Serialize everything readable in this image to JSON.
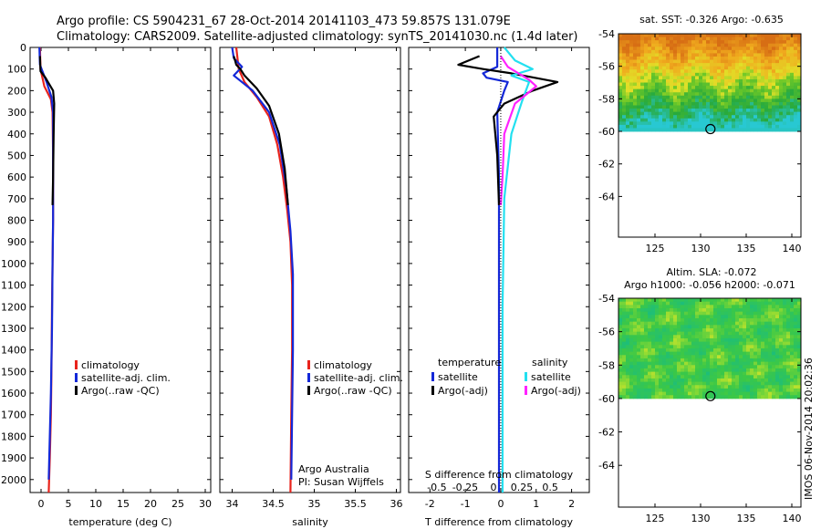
{
  "header": {
    "line1": "Argo profile: CS 5904231_67 28-Oct-2014 20141103_473 59.857S 131.079E",
    "line2": "Climatology: CARS2009. Satellite-adjusted climatology: synTS_20141030.nc (1.4d later)"
  },
  "colors": {
    "climatology": "#e8231c",
    "satellite": "#1428d8",
    "argo": "#000000",
    "sat_salinity": "#22e0f0",
    "argo_salinity": "#ff22ff"
  },
  "chart_data": [
    {
      "type": "line",
      "name": "temperature-panel",
      "xlabel": "temperature (deg C)",
      "xticks": [
        0,
        5,
        10,
        15,
        20,
        25,
        30
      ],
      "xlim": [
        -2,
        31
      ],
      "ylim": [
        2060,
        0
      ],
      "yticks": [
        0,
        100,
        200,
        300,
        400,
        500,
        600,
        700,
        800,
        900,
        1000,
        1100,
        1200,
        1300,
        1400,
        1500,
        1600,
        1700,
        1800,
        1900,
        2000
      ],
      "legend": [
        "climatology",
        "satellite-adj. clim.",
        "Argo(..raw -QC)"
      ],
      "series": [
        {
          "name": "climatology",
          "color": "#e8231c",
          "x": [
            -0.2,
            -0.1,
            0.6,
            1.8,
            2.1,
            2.2,
            2.2,
            2.1,
            2.0,
            1.9,
            1.8,
            1.6,
            1.4
          ],
          "y": [
            0,
            100,
            180,
            240,
            300,
            500,
            800,
            1000,
            1200,
            1500,
            1700,
            1900,
            2060
          ]
        },
        {
          "name": "satellite-adj. clim.",
          "color": "#1428d8",
          "x": [
            -0.3,
            -0.2,
            1.0,
            1.9,
            2.2,
            2.2,
            2.2,
            2.1,
            2.0,
            1.8,
            1.6,
            1.4
          ],
          "y": [
            0,
            80,
            160,
            230,
            300,
            500,
            800,
            1000,
            1300,
            1600,
            1800,
            2000
          ]
        },
        {
          "name": "Argo(..raw -QC)",
          "color": "#000000",
          "x": [
            -0.2,
            -0.1,
            0.8,
            1.5,
            2.2,
            2.4,
            2.3,
            2.2,
            2.1
          ],
          "y": [
            40,
            110,
            140,
            170,
            200,
            260,
            400,
            600,
            730
          ]
        }
      ]
    },
    {
      "type": "line",
      "name": "salinity-panel",
      "xlabel": "salinity",
      "xticks": [
        34,
        34.5,
        35,
        35.5,
        36
      ],
      "xtick_labels": [
        "34",
        "34.5",
        "35",
        "35.5",
        "36"
      ],
      "xlim": [
        33.85,
        36.05
      ],
      "ylim": [
        2060,
        0
      ],
      "legend": [
        "climatology",
        "satellite-adj. clim.",
        "Argo(..raw -QC)"
      ],
      "annotation": [
        "Argo Australia",
        "PI: Susan Wijffels"
      ],
      "series": [
        {
          "name": "climatology",
          "color": "#e8231c",
          "x": [
            34.05,
            34.08,
            34.15,
            34.3,
            34.45,
            34.55,
            34.62,
            34.67,
            34.71,
            34.73,
            34.73,
            34.72,
            34.71
          ],
          "y": [
            0,
            100,
            160,
            230,
            320,
            450,
            600,
            750,
            900,
            1100,
            1400,
            1700,
            2060
          ]
        },
        {
          "name": "satellite-adj. clim.",
          "color": "#1428d8",
          "x": [
            34.0,
            34.02,
            34.12,
            34.02,
            34.25,
            34.45,
            34.58,
            34.66,
            34.71,
            34.74,
            34.74,
            34.73,
            34.72
          ],
          "y": [
            0,
            50,
            90,
            130,
            200,
            300,
            450,
            650,
            850,
            1050,
            1400,
            1700,
            2000
          ]
        },
        {
          "name": "Argo(..raw -QC)",
          "color": "#000000",
          "x": [
            34.02,
            34.05,
            34.1,
            34.15,
            34.3,
            34.45,
            34.57,
            34.64,
            34.68
          ],
          "y": [
            40,
            80,
            100,
            130,
            190,
            270,
            400,
            560,
            730
          ]
        }
      ]
    },
    {
      "type": "line",
      "name": "difference-panel",
      "xlabel": "T difference from climatology",
      "xlabel2": "S difference from climatology",
      "xticks": [
        -2,
        -1,
        0,
        1,
        2
      ],
      "xticks2": [
        -0.5,
        -0.25,
        0,
        0.25,
        0.5
      ],
      "xtick2_labels": [
        "-0.5",
        "-0.25",
        "0",
        "0.25",
        "0.5"
      ],
      "xlim": [
        -2.6,
        2.5
      ],
      "ylim": [
        2060,
        0
      ],
      "legend_titles": [
        "temperature",
        "salinity"
      ],
      "legend": [
        "satellite",
        "Argo(-adj)",
        "satellite",
        "Argo(-adj)"
      ],
      "series": [
        {
          "name": "temperature satellite",
          "color": "#1428d8",
          "x": [
            -0.1,
            -0.1,
            -0.5,
            -0.4,
            0.2,
            0.1,
            -0.1,
            -0.05,
            -0.05,
            -0.05
          ],
          "y": [
            0,
            90,
            120,
            140,
            160,
            200,
            300,
            600,
            1200,
            2060
          ]
        },
        {
          "name": "temperature Argo(-adj)",
          "color": "#000000",
          "x": [
            -0.6,
            -1.2,
            -0.5,
            0.3,
            1.6,
            0.9,
            0.1,
            -0.2,
            -0.1,
            -0.05
          ],
          "y": [
            40,
            80,
            100,
            120,
            160,
            200,
            260,
            320,
            500,
            730
          ]
        },
        {
          "name": "salinity satellite",
          "color": "#22e0f0",
          "x": [
            0.1,
            0.4,
            0.9,
            0.3,
            0.8,
            0.6,
            0.3,
            0.1,
            0.05,
            0.05
          ],
          "y": [
            0,
            60,
            100,
            130,
            160,
            250,
            400,
            700,
            1200,
            2060
          ]
        },
        {
          "name": "salinity Argo(-adj)",
          "color": "#ff22ff",
          "x": [
            0.0,
            0.2,
            0.5,
            0.8,
            1.0,
            0.4,
            0.1,
            0.05,
            0.0
          ],
          "y": [
            40,
            90,
            120,
            150,
            180,
            260,
            400,
            600,
            730
          ]
        }
      ]
    },
    {
      "type": "heatmap",
      "name": "sst-map",
      "title": "sat. SST: -0.326 Argo: -0.635",
      "xticks": [
        125,
        130,
        135,
        140
      ],
      "yticks": [
        -54,
        -56,
        -58,
        -60,
        -62,
        -64
      ],
      "xlim": [
        121,
        141
      ],
      "ylim": [
        -66.5,
        -54
      ],
      "data_ylim": [
        -60,
        -54
      ],
      "marker": {
        "lon": 131.079,
        "lat": -59.857
      }
    },
    {
      "type": "heatmap",
      "name": "sla-map",
      "title": "Altim. SLA: -0.072",
      "subtitle": "Argo h1000: -0.056 h2000: -0.071",
      "xticks": [
        125,
        130,
        135,
        140
      ],
      "yticks": [
        -54,
        -56,
        -58,
        -60,
        -62,
        -64
      ],
      "xlim": [
        121,
        141
      ],
      "ylim": [
        -66.5,
        -54
      ],
      "data_ylim": [
        -60,
        -54
      ],
      "marker": {
        "lon": 131.079,
        "lat": -59.857
      }
    }
  ],
  "footer": {
    "watermark": "IMOS 06-Nov-2014 20:02:36"
  }
}
